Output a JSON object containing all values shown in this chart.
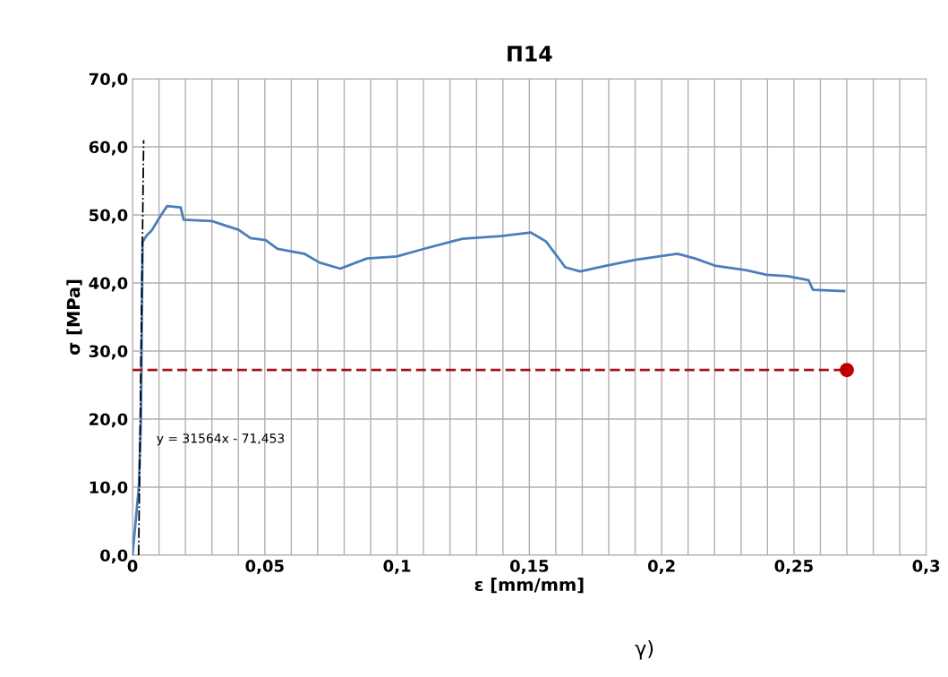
{
  "chart_data": {
    "type": "line",
    "title": "П14",
    "xlabel": "ε [mm/mm]",
    "ylabel": "σ [MPa]",
    "xlim": [
      0,
      0.3
    ],
    "ylim": [
      0,
      70
    ],
    "xticks": [
      {
        "value": 0,
        "label": "0"
      },
      {
        "value": 0.01,
        "label": null
      },
      {
        "value": 0.02,
        "label": null
      },
      {
        "value": 0.03,
        "label": null
      },
      {
        "value": 0.04,
        "label": null
      },
      {
        "value": 0.05,
        "label": "0,05"
      },
      {
        "value": 0.06,
        "label": null
      },
      {
        "value": 0.07,
        "label": null
      },
      {
        "value": 0.08,
        "label": null
      },
      {
        "value": 0.09,
        "label": null
      },
      {
        "value": 0.1,
        "label": "0,1"
      },
      {
        "value": 0.11,
        "label": null
      },
      {
        "value": 0.12,
        "label": null
      },
      {
        "value": 0.13,
        "label": null
      },
      {
        "value": 0.14,
        "label": null
      },
      {
        "value": 0.15,
        "label": "0,15"
      },
      {
        "value": 0.16,
        "label": null
      },
      {
        "value": 0.17,
        "label": null
      },
      {
        "value": 0.18,
        "label": null
      },
      {
        "value": 0.19,
        "label": null
      },
      {
        "value": 0.2,
        "label": "0,2"
      },
      {
        "value": 0.21,
        "label": null
      },
      {
        "value": 0.22,
        "label": null
      },
      {
        "value": 0.23,
        "label": null
      },
      {
        "value": 0.24,
        "label": null
      },
      {
        "value": 0.25,
        "label": "0,25"
      },
      {
        "value": 0.26,
        "label": null
      },
      {
        "value": 0.27,
        "label": null
      },
      {
        "value": 0.28,
        "label": null
      },
      {
        "value": 0.29,
        "label": null
      },
      {
        "value": 0.3,
        "label": "0,3"
      }
    ],
    "yticks": [
      {
        "value": 0,
        "label": "0,0"
      },
      {
        "value": 10,
        "label": "10,0"
      },
      {
        "value": 20,
        "label": "20,0"
      },
      {
        "value": 30,
        "label": "30,0"
      },
      {
        "value": 40,
        "label": "40,0"
      },
      {
        "value": 50,
        "label": "50,0"
      },
      {
        "value": 60,
        "label": "60,0"
      },
      {
        "value": 70,
        "label": "70,0"
      }
    ],
    "grid": true,
    "legend": false,
    "series": [
      {
        "color": "#4a7ebb",
        "line_style": "solid",
        "marker": "none",
        "x": [
          0,
          0.0007,
          0.0024,
          0.0032,
          0.0038,
          0.0052,
          0.0074,
          0.0108,
          0.0131,
          0.0182,
          0.0193,
          0.03,
          0.0401,
          0.0446,
          0.0503,
          0.0548,
          0.0649,
          0.0706,
          0.0785,
          0.0886,
          0.0999,
          0.11,
          0.1247,
          0.1393,
          0.1506,
          0.1563,
          0.1636,
          0.1692,
          0.1788,
          0.1901,
          0.2059,
          0.2126,
          0.2205,
          0.2318,
          0.2397,
          0.2476,
          0.2555,
          0.2572,
          0.269
        ],
        "values": [
          0,
          3,
          10.1,
          20.1,
          46,
          46.9,
          47.8,
          50,
          51.3,
          51.1,
          49.3,
          49.1,
          47.8,
          46.6,
          46.3,
          45.0,
          44.3,
          43.0,
          42.1,
          43.6,
          43.9,
          45.0,
          46.5,
          46.9,
          47.4,
          46.1,
          42.3,
          41.7,
          42.5,
          43.4,
          44.3,
          43.6,
          42.5,
          41.9,
          41.2,
          41.0,
          40.4,
          39.0,
          38.8
        ]
      },
      {
        "color": "#000000",
        "line_style": "dashdot",
        "marker": "none",
        "x": [
          0.0023,
          0.0042
        ],
        "values": [
          0,
          61
        ]
      },
      {
        "color": "#a50f15",
        "line_style": "dashed",
        "marker": "none",
        "x": [
          0,
          0.27
        ],
        "values": [
          27.2,
          27.2
        ]
      },
      {
        "type": "scatter",
        "color": "#c00000",
        "marker": "circle",
        "x": [
          0.27
        ],
        "values": [
          27.2
        ]
      }
    ],
    "annotations": [
      "y = 31564x - 71,453",
      "γ)"
    ]
  }
}
